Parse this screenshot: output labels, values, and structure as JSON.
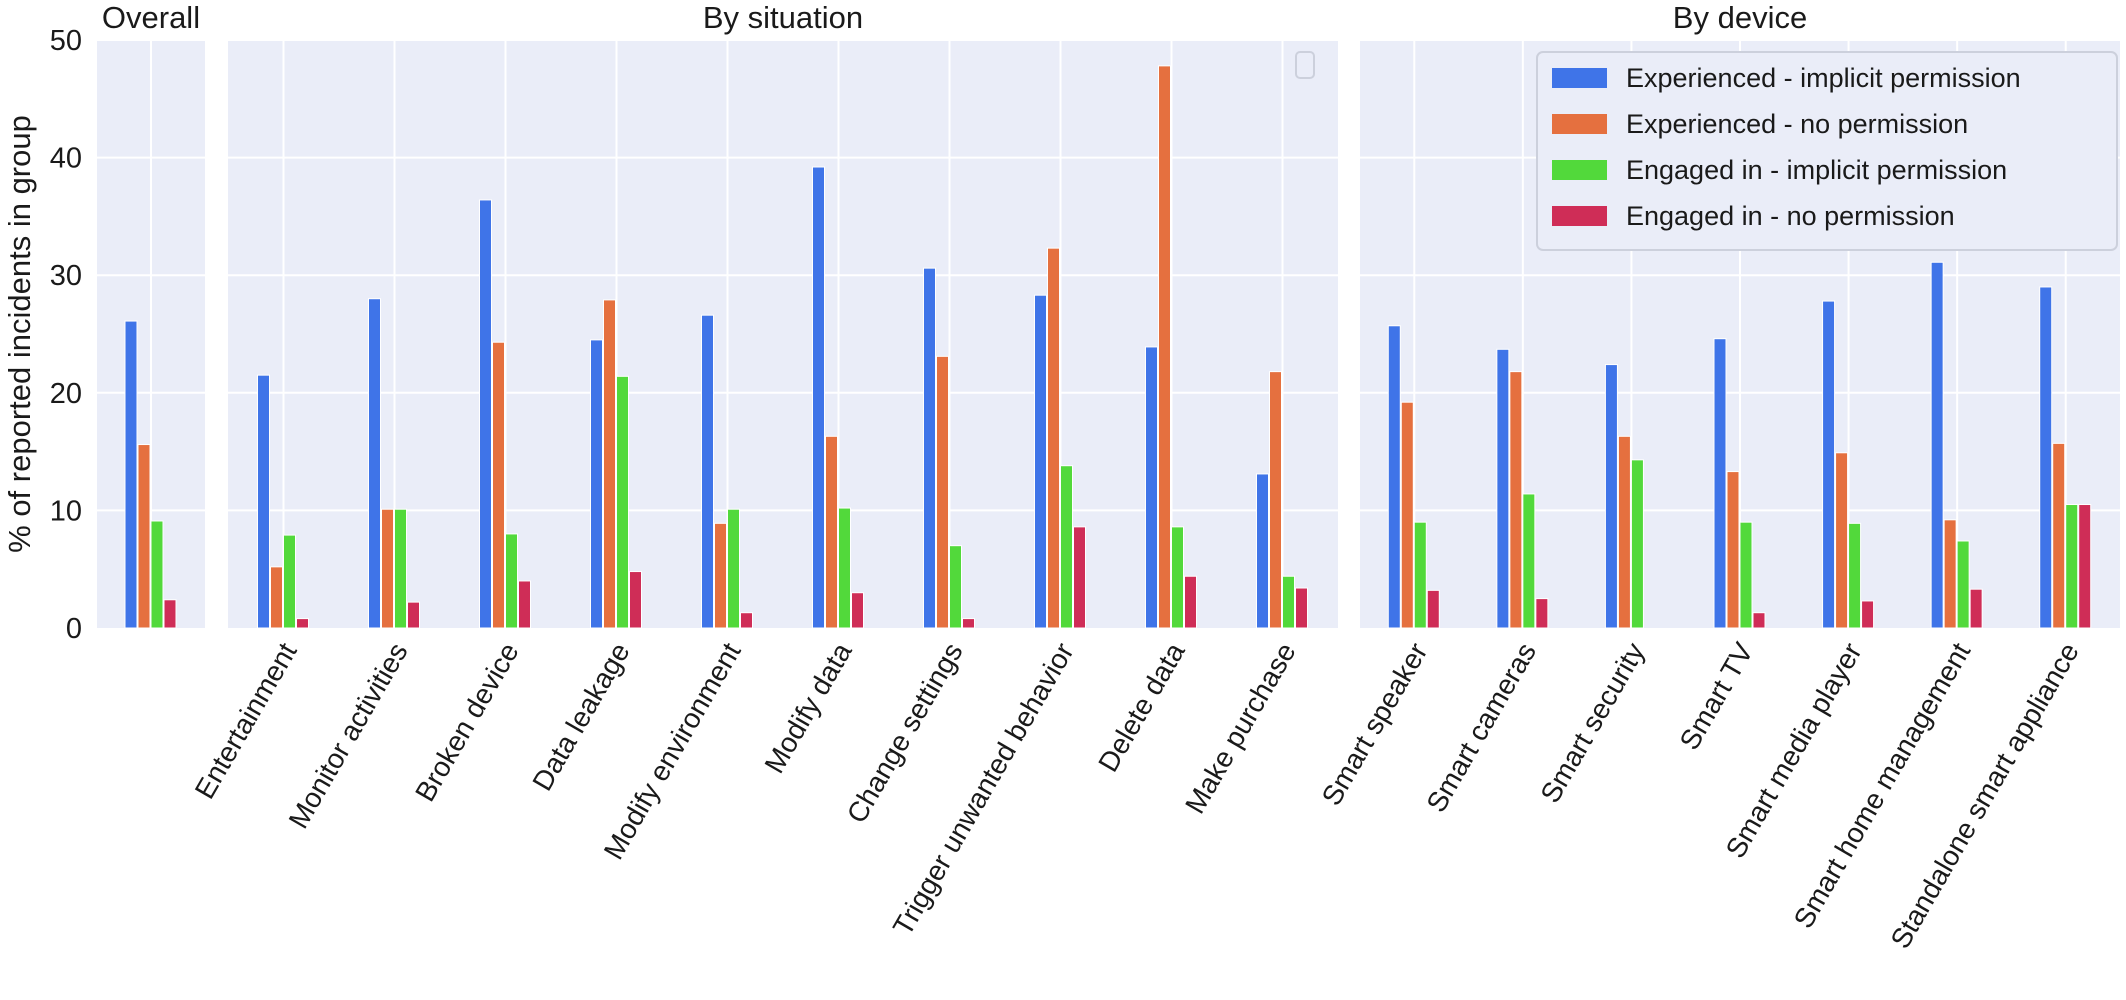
{
  "chart_data": {
    "type": "bar",
    "ylabel": "% of reported incidents in group",
    "ylim": [
      0,
      50
    ],
    "yticks": [
      "0",
      "10",
      "20",
      "30",
      "40",
      "50"
    ],
    "grid": true,
    "legend_placement": "top-right",
    "series": [
      {
        "name": "Experienced - implicit permission",
        "color": "#3f74e8"
      },
      {
        "name": "Experienced - no permission",
        "color": "#e5703f"
      },
      {
        "name": "Engaged in - implicit permission",
        "color": "#52d93b"
      },
      {
        "name": "Engaged in - no permission",
        "color": "#cf2d57"
      }
    ],
    "panels": [
      {
        "title": "Overall",
        "categories": [
          ""
        ],
        "values": [
          [
            26.1,
            15.6,
            9.1,
            2.4
          ]
        ]
      },
      {
        "title": "By situation",
        "categories": [
          "Entertainment",
          "Monitor activities",
          "Broken device",
          "Data leakage",
          "Modify environment",
          "Modify data",
          "Change settings",
          "Trigger unwanted behavior",
          "Delete data",
          "Make purchase"
        ],
        "values": [
          [
            21.5,
            5.2,
            7.9,
            0.8
          ],
          [
            28.0,
            10.1,
            10.1,
            2.2
          ],
          [
            36.4,
            24.3,
            8.0,
            4.0
          ],
          [
            24.5,
            27.9,
            21.4,
            4.8
          ],
          [
            26.6,
            8.9,
            10.1,
            1.3
          ],
          [
            39.2,
            16.3,
            10.2,
            3.0
          ],
          [
            30.6,
            23.1,
            7.0,
            0.8
          ],
          [
            28.3,
            32.3,
            13.8,
            8.6
          ],
          [
            23.9,
            47.8,
            8.6,
            4.4
          ],
          [
            13.1,
            21.8,
            4.4,
            3.4
          ]
        ]
      },
      {
        "title": "By device",
        "categories": [
          "Smart speaker",
          "Smart cameras",
          "Smart security",
          "Smart TV",
          "Smart media player",
          "Smart home management",
          "Standalone smart appliance"
        ],
        "values": [
          [
            25.7,
            19.2,
            9.0,
            3.2
          ],
          [
            23.7,
            21.8,
            11.4,
            2.5
          ],
          [
            22.4,
            16.3,
            14.3,
            0
          ],
          [
            24.6,
            13.3,
            9.0,
            1.3
          ],
          [
            27.8,
            14.9,
            8.9,
            2.3
          ],
          [
            31.1,
            9.2,
            7.4,
            3.3
          ],
          [
            29.0,
            15.7,
            10.5,
            10.5
          ]
        ]
      }
    ]
  }
}
